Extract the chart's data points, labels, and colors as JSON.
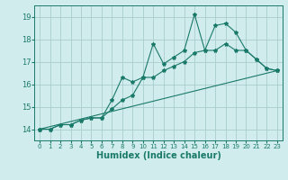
{
  "xlabel": "Humidex (Indice chaleur)",
  "ylabel": "",
  "background_color": "#d0ecec",
  "grid_color": "#aacccc",
  "line_color": "#1a7a6a",
  "xlim": [
    -0.5,
    23.5
  ],
  "ylim": [
    13.5,
    19.5
  ],
  "yticks": [
    14,
    15,
    16,
    17,
    18,
    19
  ],
  "xticks": [
    0,
    1,
    2,
    3,
    4,
    5,
    6,
    7,
    8,
    9,
    10,
    11,
    12,
    13,
    14,
    15,
    16,
    17,
    18,
    19,
    20,
    21,
    22,
    23
  ],
  "line1_x": [
    0,
    1,
    2,
    3,
    4,
    5,
    6,
    7,
    8,
    9,
    10,
    11,
    12,
    13,
    14,
    15,
    16,
    17,
    18,
    19,
    20,
    21,
    22,
    23
  ],
  "line1_y": [
    14.0,
    14.0,
    14.2,
    14.2,
    14.4,
    14.5,
    14.5,
    15.3,
    16.3,
    16.1,
    16.3,
    17.8,
    16.9,
    17.2,
    17.5,
    19.1,
    17.5,
    18.6,
    18.7,
    18.3,
    17.5,
    17.1,
    16.7,
    16.6
  ],
  "line2_x": [
    0,
    1,
    2,
    3,
    4,
    5,
    6,
    7,
    8,
    9,
    10,
    11,
    12,
    13,
    14,
    15,
    16,
    17,
    18,
    19,
    20,
    21,
    22,
    23
  ],
  "line2_y": [
    14.0,
    14.0,
    14.2,
    14.2,
    14.4,
    14.5,
    14.5,
    14.9,
    15.3,
    15.5,
    16.3,
    16.3,
    16.6,
    16.8,
    17.0,
    17.4,
    17.5,
    17.5,
    17.8,
    17.5,
    17.5,
    17.1,
    16.7,
    16.6
  ],
  "line3_x": [
    0,
    23
  ],
  "line3_y": [
    14.0,
    16.6
  ]
}
